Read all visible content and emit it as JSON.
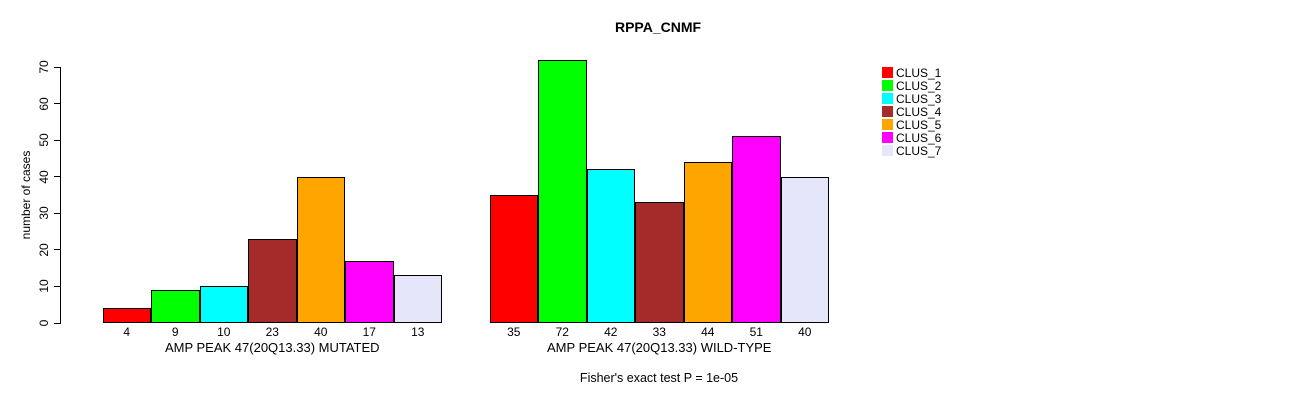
{
  "chart_data": {
    "type": "bar",
    "title": "RPPA_CNMF",
    "ylabel": "number of cases",
    "xlabel": "",
    "ylim": [
      0,
      70
    ],
    "yticks": [
      0,
      10,
      20,
      30,
      40,
      50,
      60,
      70
    ],
    "grid": false,
    "legend_position": "right",
    "categories": [
      "AMP PEAK 47(20Q13.33) MUTATED",
      "AMP PEAK 47(20Q13.33) WILD-TYPE"
    ],
    "series": [
      {
        "name": "CLUS_1",
        "color": "#FF0000",
        "values": [
          4,
          35
        ]
      },
      {
        "name": "CLUS_2",
        "color": "#00FF00",
        "values": [
          9,
          72
        ]
      },
      {
        "name": "CLUS_3",
        "color": "#00FFFF",
        "values": [
          10,
          42
        ]
      },
      {
        "name": "CLUS_4",
        "color": "#A52A2A",
        "values": [
          23,
          33
        ]
      },
      {
        "name": "CLUS_5",
        "color": "#FFA500",
        "values": [
          40,
          44
        ]
      },
      {
        "name": "CLUS_6",
        "color": "#FF00FF",
        "values": [
          17,
          51
        ]
      },
      {
        "name": "CLUS_7",
        "color": "#E6E6FA",
        "values": [
          13,
          40
        ]
      }
    ],
    "groups": [
      {
        "label": "AMP PEAK 47(20Q13.33) MUTATED",
        "values": [
          4,
          9,
          10,
          23,
          40,
          17,
          13
        ]
      },
      {
        "label": "AMP PEAK 47(20Q13.33) WILD-TYPE",
        "values": [
          35,
          72,
          42,
          33,
          44,
          51,
          40
        ]
      }
    ],
    "annotation": "Fisher's exact test P = 1e-05"
  }
}
